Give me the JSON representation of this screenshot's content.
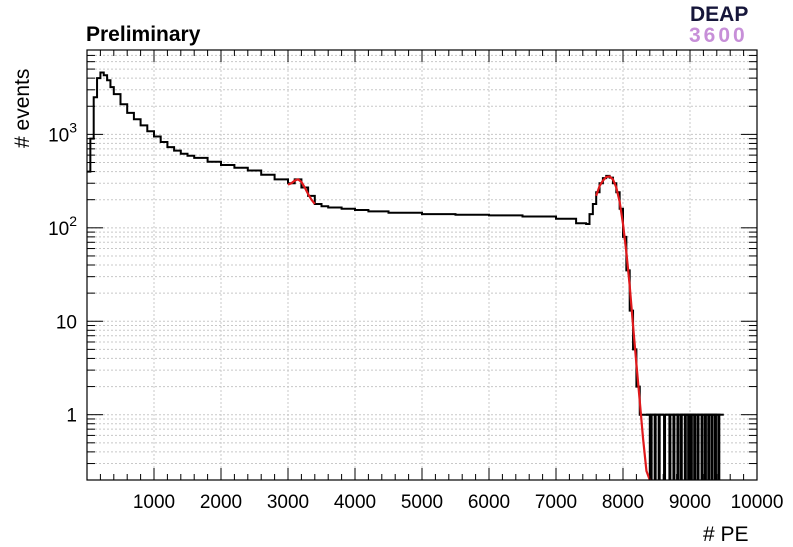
{
  "header": {
    "tag": "Preliminary",
    "logo_top": "DEAP",
    "logo_bottom": "3600"
  },
  "chart_data": {
    "type": "line",
    "subtype": "histogram",
    "xlabel": "# PE",
    "ylabel": "# events",
    "xlim": [
      0,
      10000
    ],
    "ylim": [
      0.2,
      8000
    ],
    "yscale": "log",
    "grid": true,
    "x_ticks": [
      {
        "value": 1000,
        "label": "1000"
      },
      {
        "value": 2000,
        "label": "2000"
      },
      {
        "value": 3000,
        "label": "3000"
      },
      {
        "value": 4000,
        "label": "4000"
      },
      {
        "value": 5000,
        "label": "5000"
      },
      {
        "value": 6000,
        "label": "6000"
      },
      {
        "value": 7000,
        "label": "7000"
      },
      {
        "value": 8000,
        "label": "8000"
      },
      {
        "value": 9000,
        "label": "9000"
      },
      {
        "value": 10000,
        "label": "10000"
      }
    ],
    "y_ticks": [
      {
        "value": 1,
        "base": "1",
        "exp": ""
      },
      {
        "value": 10,
        "base": "10",
        "exp": ""
      },
      {
        "value": 100,
        "base": "10",
        "exp": "2"
      },
      {
        "value": 1000,
        "base": "10",
        "exp": "3"
      }
    ],
    "series": [
      {
        "color": "#000000",
        "style": "step",
        "x": [
          0,
          50,
          100,
          150,
          200,
          250,
          300,
          350,
          400,
          500,
          600,
          700,
          800,
          900,
          1000,
          1100,
          1200,
          1300,
          1400,
          1500,
          1600,
          1800,
          2000,
          2200,
          2400,
          2600,
          2800,
          3000,
          3100,
          3200,
          3300,
          3400,
          3500,
          3600,
          3800,
          4000,
          4200,
          4500,
          5000,
          5500,
          6000,
          6500,
          7000,
          7300,
          7450,
          7500,
          7550,
          7600,
          7650,
          7700,
          7750,
          7800,
          7850,
          7900,
          7950,
          8000,
          8050,
          8100,
          8150,
          8200,
          8250,
          8300,
          8350
        ],
        "y": [
          400,
          900,
          2500,
          4000,
          4600,
          4300,
          3800,
          3200,
          2700,
          2100,
          1700,
          1450,
          1250,
          1080,
          950,
          830,
          730,
          670,
          620,
          590,
          560,
          510,
          470,
          440,
          410,
          370,
          330,
          300,
          330,
          270,
          220,
          180,
          170,
          165,
          160,
          155,
          150,
          145,
          140,
          138,
          136,
          132,
          125,
          112,
          110,
          140,
          180,
          240,
          300,
          340,
          360,
          345,
          300,
          240,
          160,
          80,
          35,
          13,
          5,
          2,
          1,
          1,
          1
        ]
      },
      {
        "color": "#000000",
        "style": "spikes",
        "x": [
          8420,
          8480,
          8540,
          8620,
          8700,
          8760,
          8820,
          8870,
          8930,
          8980,
          9020,
          9070,
          9120,
          9180,
          9230,
          9280,
          9330,
          9380,
          9430
        ],
        "y": [
          1,
          1,
          1,
          1,
          1,
          1,
          1,
          1,
          1,
          1,
          1,
          1,
          1,
          1,
          1,
          1,
          1,
          1,
          1
        ]
      },
      {
        "color": "#e0191c",
        "style": "fit",
        "x": [
          3000,
          3050,
          3100,
          3150,
          3200,
          3250,
          3300,
          3350,
          3400
        ],
        "y": [
          290,
          300,
          320,
          330,
          310,
          270,
          230,
          200,
          180
        ]
      },
      {
        "color": "#e0191c",
        "style": "fit",
        "x": [
          7600,
          7650,
          7700,
          7750,
          7800,
          7850,
          7900,
          7950,
          8000,
          8050,
          8100,
          8150,
          8200,
          8250,
          8300,
          8350,
          8400
        ],
        "y": [
          220,
          280,
          320,
          350,
          355,
          330,
          270,
          190,
          110,
          55,
          24,
          9,
          3.5,
          1.4,
          0.55,
          0.25,
          0.2
        ]
      }
    ]
  }
}
